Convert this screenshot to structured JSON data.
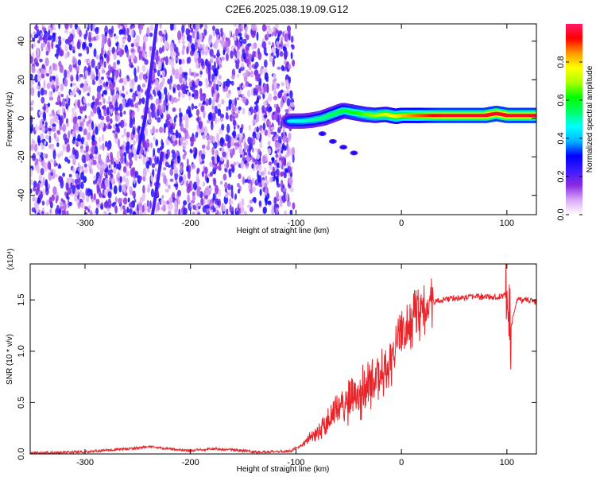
{
  "window": {
    "title": "C2E6.2025.038.19.09.G12"
  },
  "chart_data": [
    {
      "type": "heatmap",
      "title": "C2E6.2025.038.19.09.G12",
      "xlabel": "Height of straight line (km)",
      "ylabel": "Frequency (Hz)",
      "xlim": [
        -352,
        128
      ],
      "ylim": [
        -50,
        49
      ],
      "x_ticks": [
        -300,
        -200,
        -100,
        0,
        100
      ],
      "x_tick_labels": [
        "-300",
        "-200",
        "-100",
        "0",
        "100"
      ],
      "y_ticks": [
        -40,
        -20,
        0,
        20,
        40
      ],
      "y_tick_labels": [
        "-40",
        "-20",
        "0",
        "20",
        "40"
      ],
      "colorbar": {
        "label": "Normalized spectral amplitude",
        "range": [
          0,
          1
        ],
        "ticks": [
          0.0,
          0.2,
          0.4,
          0.6,
          0.8
        ],
        "tick_labels": [
          "0.0",
          "0.2",
          "0.4",
          "0.6",
          "0.8"
        ],
        "colormap": [
          "#ffffff",
          "#d9a8f5",
          "#8a2be2",
          "#3b1cff",
          "#0000ff",
          "#00b4ff",
          "#00ffff",
          "#00ff66",
          "#00ff00",
          "#aaff00",
          "#ffff00",
          "#ff9900",
          "#ff0000",
          "#ff1a66"
        ]
      },
      "noise_region": {
        "x_range": [
          -352,
          -102
        ],
        "amplitude_range": [
          0.05,
          0.3
        ]
      },
      "streaks": [
        {
          "x_start": -243,
          "x_end": -232,
          "y_start": 0,
          "y_end": 49,
          "amplitude": 0.22
        },
        {
          "x_start": -250,
          "x_end": -243,
          "y_start": -18,
          "y_end": 0,
          "amplitude": 0.25
        },
        {
          "x_start": -236,
          "x_end": -227,
          "y_start": -50,
          "y_end": -18,
          "amplitude": 0.22
        }
      ],
      "signal_track": [
        {
          "x": -105,
          "y": -1.5
        },
        {
          "x": -95,
          "y": -1.5
        },
        {
          "x": -85,
          "y": -1
        },
        {
          "x": -75,
          "y": 0
        },
        {
          "x": -65,
          "y": 2
        },
        {
          "x": -55,
          "y": 4
        },
        {
          "x": -45,
          "y": 3
        },
        {
          "x": -35,
          "y": 2
        },
        {
          "x": -25,
          "y": 1.5
        },
        {
          "x": -15,
          "y": 2
        },
        {
          "x": -5,
          "y": 1
        },
        {
          "x": 0,
          "y": 1.5
        },
        {
          "x": 10,
          "y": 1.5
        },
        {
          "x": 20,
          "y": 1.5
        },
        {
          "x": 40,
          "y": 1.5
        },
        {
          "x": 60,
          "y": 1.5
        },
        {
          "x": 80,
          "y": 1.5
        },
        {
          "x": 90,
          "y": 2.5
        },
        {
          "x": 100,
          "y": 1.5
        },
        {
          "x": 115,
          "y": 1.5
        },
        {
          "x": 128,
          "y": 1.5
        }
      ],
      "signal_amplitude": [
        {
          "x": -105,
          "amplitude": 0.45
        },
        {
          "x": -60,
          "amplitude": 0.55
        },
        {
          "x": -20,
          "amplitude": 0.7
        },
        {
          "x": 10,
          "amplitude": 0.85
        },
        {
          "x": 40,
          "amplitude": 0.95
        },
        {
          "x": 128,
          "amplitude": 0.95
        }
      ],
      "branch": [
        {
          "x": -75,
          "y": -8
        },
        {
          "x": -65,
          "y": -12
        },
        {
          "x": -55,
          "y": -15
        },
        {
          "x": -45,
          "y": -18
        }
      ]
    },
    {
      "type": "line",
      "xlabel": "Height of straight line (km)",
      "ylabel": "SNR (10 * v/v)",
      "y_multiplier_label": "(x10⁴)",
      "xlim": [
        -352,
        128
      ],
      "ylim": [
        0,
        1.85
      ],
      "x_ticks": [
        -300,
        -200,
        -100,
        0,
        100
      ],
      "x_tick_labels": [
        "-300",
        "-200",
        "-100",
        "0",
        "100"
      ],
      "y_ticks": [
        0.0,
        0.5,
        1.0,
        1.5
      ],
      "y_tick_labels": [
        "0.0",
        "0.5",
        "1.0",
        "1.5"
      ],
      "color": "#e8252b",
      "series": [
        {
          "x": [
            -352,
            -300,
            -260,
            -240,
            -220,
            -200,
            -180,
            -160,
            -140,
            -120,
            -105,
            -95,
            -85,
            -75,
            -65,
            -55,
            -45,
            -35,
            -25,
            -15,
            -5,
            0,
            5,
            10,
            15,
            20,
            25,
            30,
            40,
            50,
            60,
            70,
            80,
            90,
            100,
            103,
            110,
            120,
            128
          ],
          "y": [
            0.01,
            0.02,
            0.05,
            0.07,
            0.05,
            0.03,
            0.05,
            0.04,
            0.02,
            0.02,
            0.03,
            0.08,
            0.18,
            0.25,
            0.38,
            0.45,
            0.55,
            0.62,
            0.72,
            0.85,
            1.0,
            1.12,
            1.22,
            1.3,
            1.35,
            1.4,
            1.45,
            1.48,
            1.5,
            1.52,
            1.52,
            1.53,
            1.53,
            1.53,
            1.55,
            1.2,
            1.5,
            1.5,
            1.48
          ]
        }
      ]
    }
  ]
}
